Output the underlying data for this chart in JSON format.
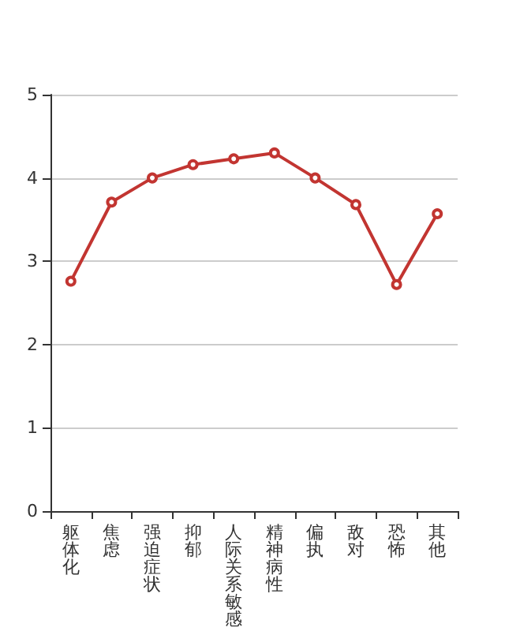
{
  "chart_data": {
    "type": "line",
    "categories": [
      "躯体化",
      "焦虑",
      "强迫症状",
      "抑郁",
      "人际关系敏感",
      "精神病性",
      "偏执",
      "敌对",
      "恐怖",
      "其他"
    ],
    "series": [
      {
        "color": "#c23531",
        "values": [
          2.76,
          3.71,
          4.0,
          4.16,
          4.23,
          4.3,
          4.0,
          3.68,
          2.72,
          3.57
        ]
      }
    ],
    "ylim": [
      0,
      5
    ],
    "yticks": [
      0,
      1,
      2,
      3,
      4,
      5
    ],
    "grid": "y",
    "marker": "circle",
    "line_style": "solid"
  }
}
